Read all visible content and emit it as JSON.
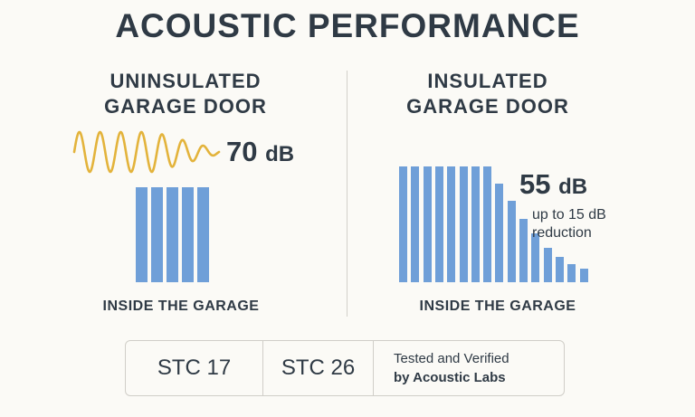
{
  "title": "ACOUSTIC PERFORMANCE",
  "left": {
    "heading_line1": "UNINSULATED",
    "heading_line2": "GARAGE DOOR",
    "level_value": "70",
    "level_unit": "dB",
    "caption": "INSIDE THE GARAGE",
    "bars": [
      1,
      1,
      1,
      1,
      1
    ]
  },
  "right": {
    "heading_line1": "INSULATED",
    "heading_line2": "GARAGE DOOR",
    "level_value": "55",
    "level_unit": "dB",
    "note_line1": "up to 15 dB",
    "note_line2": "reduction",
    "caption": "INSIDE THE GARAGE",
    "bars": [
      1,
      1,
      1,
      1,
      1,
      1,
      1,
      1,
      0.85,
      0.7,
      0.55,
      0.42,
      0.3,
      0.22,
      0.16,
      0.12
    ]
  },
  "stc": {
    "uninsulated": "STC 17",
    "insulated": "STC 26",
    "verified_line1": "Tested and Verified",
    "verified_line2": "by Acoustic Labs"
  },
  "colors": {
    "bar": "#6f9fd8",
    "wave": "#e3b33b",
    "text": "#2f3a45"
  },
  "icons": [
    "sound-wave-icon"
  ]
}
